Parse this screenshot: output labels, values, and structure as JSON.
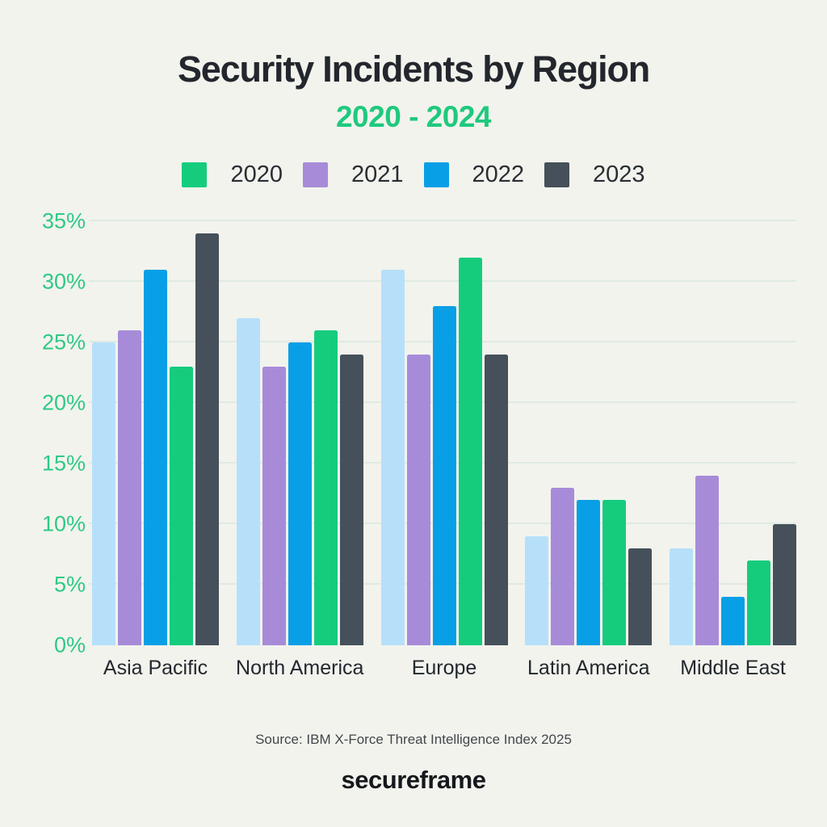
{
  "page": {
    "title": "Security Incidents by Region",
    "subtitle": "2020 - 2024",
    "source": "Source: IBM X-Force Threat Intelligence Index 2025",
    "brand": "secureframe"
  },
  "colors": {
    "background": "#F2F3ED",
    "title_text": "#23272D",
    "accent_green": "#1FC97E",
    "tick_green": "#2FC985",
    "gridline": "#DFEAE2"
  },
  "chart_data": {
    "type": "bar",
    "title": "Security Incidents by Region",
    "subtitle": "2020 - 2024",
    "xlabel": "",
    "ylabel": "",
    "ylim": [
      0,
      35
    ],
    "tick_step": 5,
    "y_ticks": [
      "0%",
      "5%",
      "10%",
      "15%",
      "20%",
      "25%",
      "30%",
      "35%"
    ],
    "grid": true,
    "legend_position": "top",
    "categories": [
      "Asia Pacific",
      "North America",
      "Europe",
      "Latin America",
      "Middle East"
    ],
    "series": [
      {
        "name": "",
        "color": "#B6E0FA",
        "values": [
          25,
          27,
          31,
          9,
          8
        ]
      },
      {
        "name": "2021",
        "color": "#A78BD9",
        "values": [
          26,
          23,
          24,
          13,
          14
        ]
      },
      {
        "name": "2022",
        "color": "#099FE6",
        "values": [
          31,
          25,
          28,
          12,
          4
        ]
      },
      {
        "name": "2020",
        "color": "#15CC7D",
        "values": [
          23,
          26,
          32,
          12,
          7
        ]
      },
      {
        "name": "2023",
        "color": "#46505A",
        "values": [
          34,
          24,
          24,
          8,
          10
        ]
      }
    ],
    "legend": [
      {
        "label": "2020",
        "color": "#15CC7D"
      },
      {
        "label": "2021",
        "color": "#A78BD9"
      },
      {
        "label": "2022",
        "color": "#099FE6"
      },
      {
        "label": "2023",
        "color": "#46505A"
      }
    ]
  }
}
